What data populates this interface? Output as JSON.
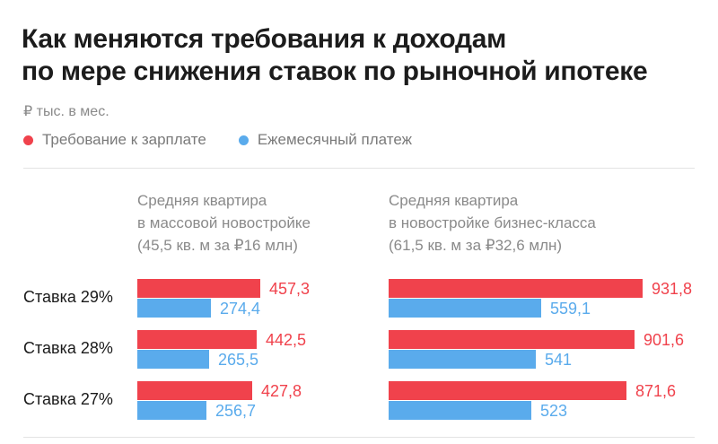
{
  "chart_data": {
    "type": "bar",
    "title": "Как меняются требования к доходам по мере снижения ставок по рыночной ипотеке",
    "title_lines": [
      "Как меняются требования к доходам",
      "по мере снижения ставок по рыночной ипотеке"
    ],
    "unit": "₽ тыс. в мес.",
    "orientation": "horizontal",
    "legend_position": "top-left",
    "colors": {
      "salary": "#f0424c",
      "payment": "#5aabec"
    },
    "categories": [
      "Ставка 29%",
      "Ставка 28%",
      "Ставка 27%"
    ],
    "legend": [
      {
        "key": "salary",
        "label": "Требование к зарплате"
      },
      {
        "key": "payment",
        "label": "Ежемесячный платеж"
      }
    ],
    "panels": [
      {
        "header": [
          "Средняя квартира",
          "в массовой новостройке",
          "(45,5 кв. м за ₽16 млн)"
        ],
        "series": [
          {
            "key": "salary",
            "values": [
              457.3,
              442.5,
              427.8
            ],
            "labels": [
              "457,3",
              "442,5",
              "427,8"
            ]
          },
          {
            "key": "payment",
            "values": [
              274.4,
              265.5,
              256.7
            ],
            "labels": [
              "274,4",
              "265,5",
              "256,7"
            ]
          }
        ]
      },
      {
        "header": [
          "Средняя квартира",
          "в новостройке бизнес-класса",
          "(61,5 кв. м за ₽32,6 млн)"
        ],
        "series": [
          {
            "key": "salary",
            "values": [
              931.8,
              901.6,
              871.6
            ],
            "labels": [
              "931,8",
              "901,6",
              "871,6"
            ]
          },
          {
            "key": "payment",
            "values": [
              559.1,
              541,
              523
            ],
            "labels": [
              "559,1",
              "541",
              "523"
            ]
          }
        ]
      }
    ]
  }
}
